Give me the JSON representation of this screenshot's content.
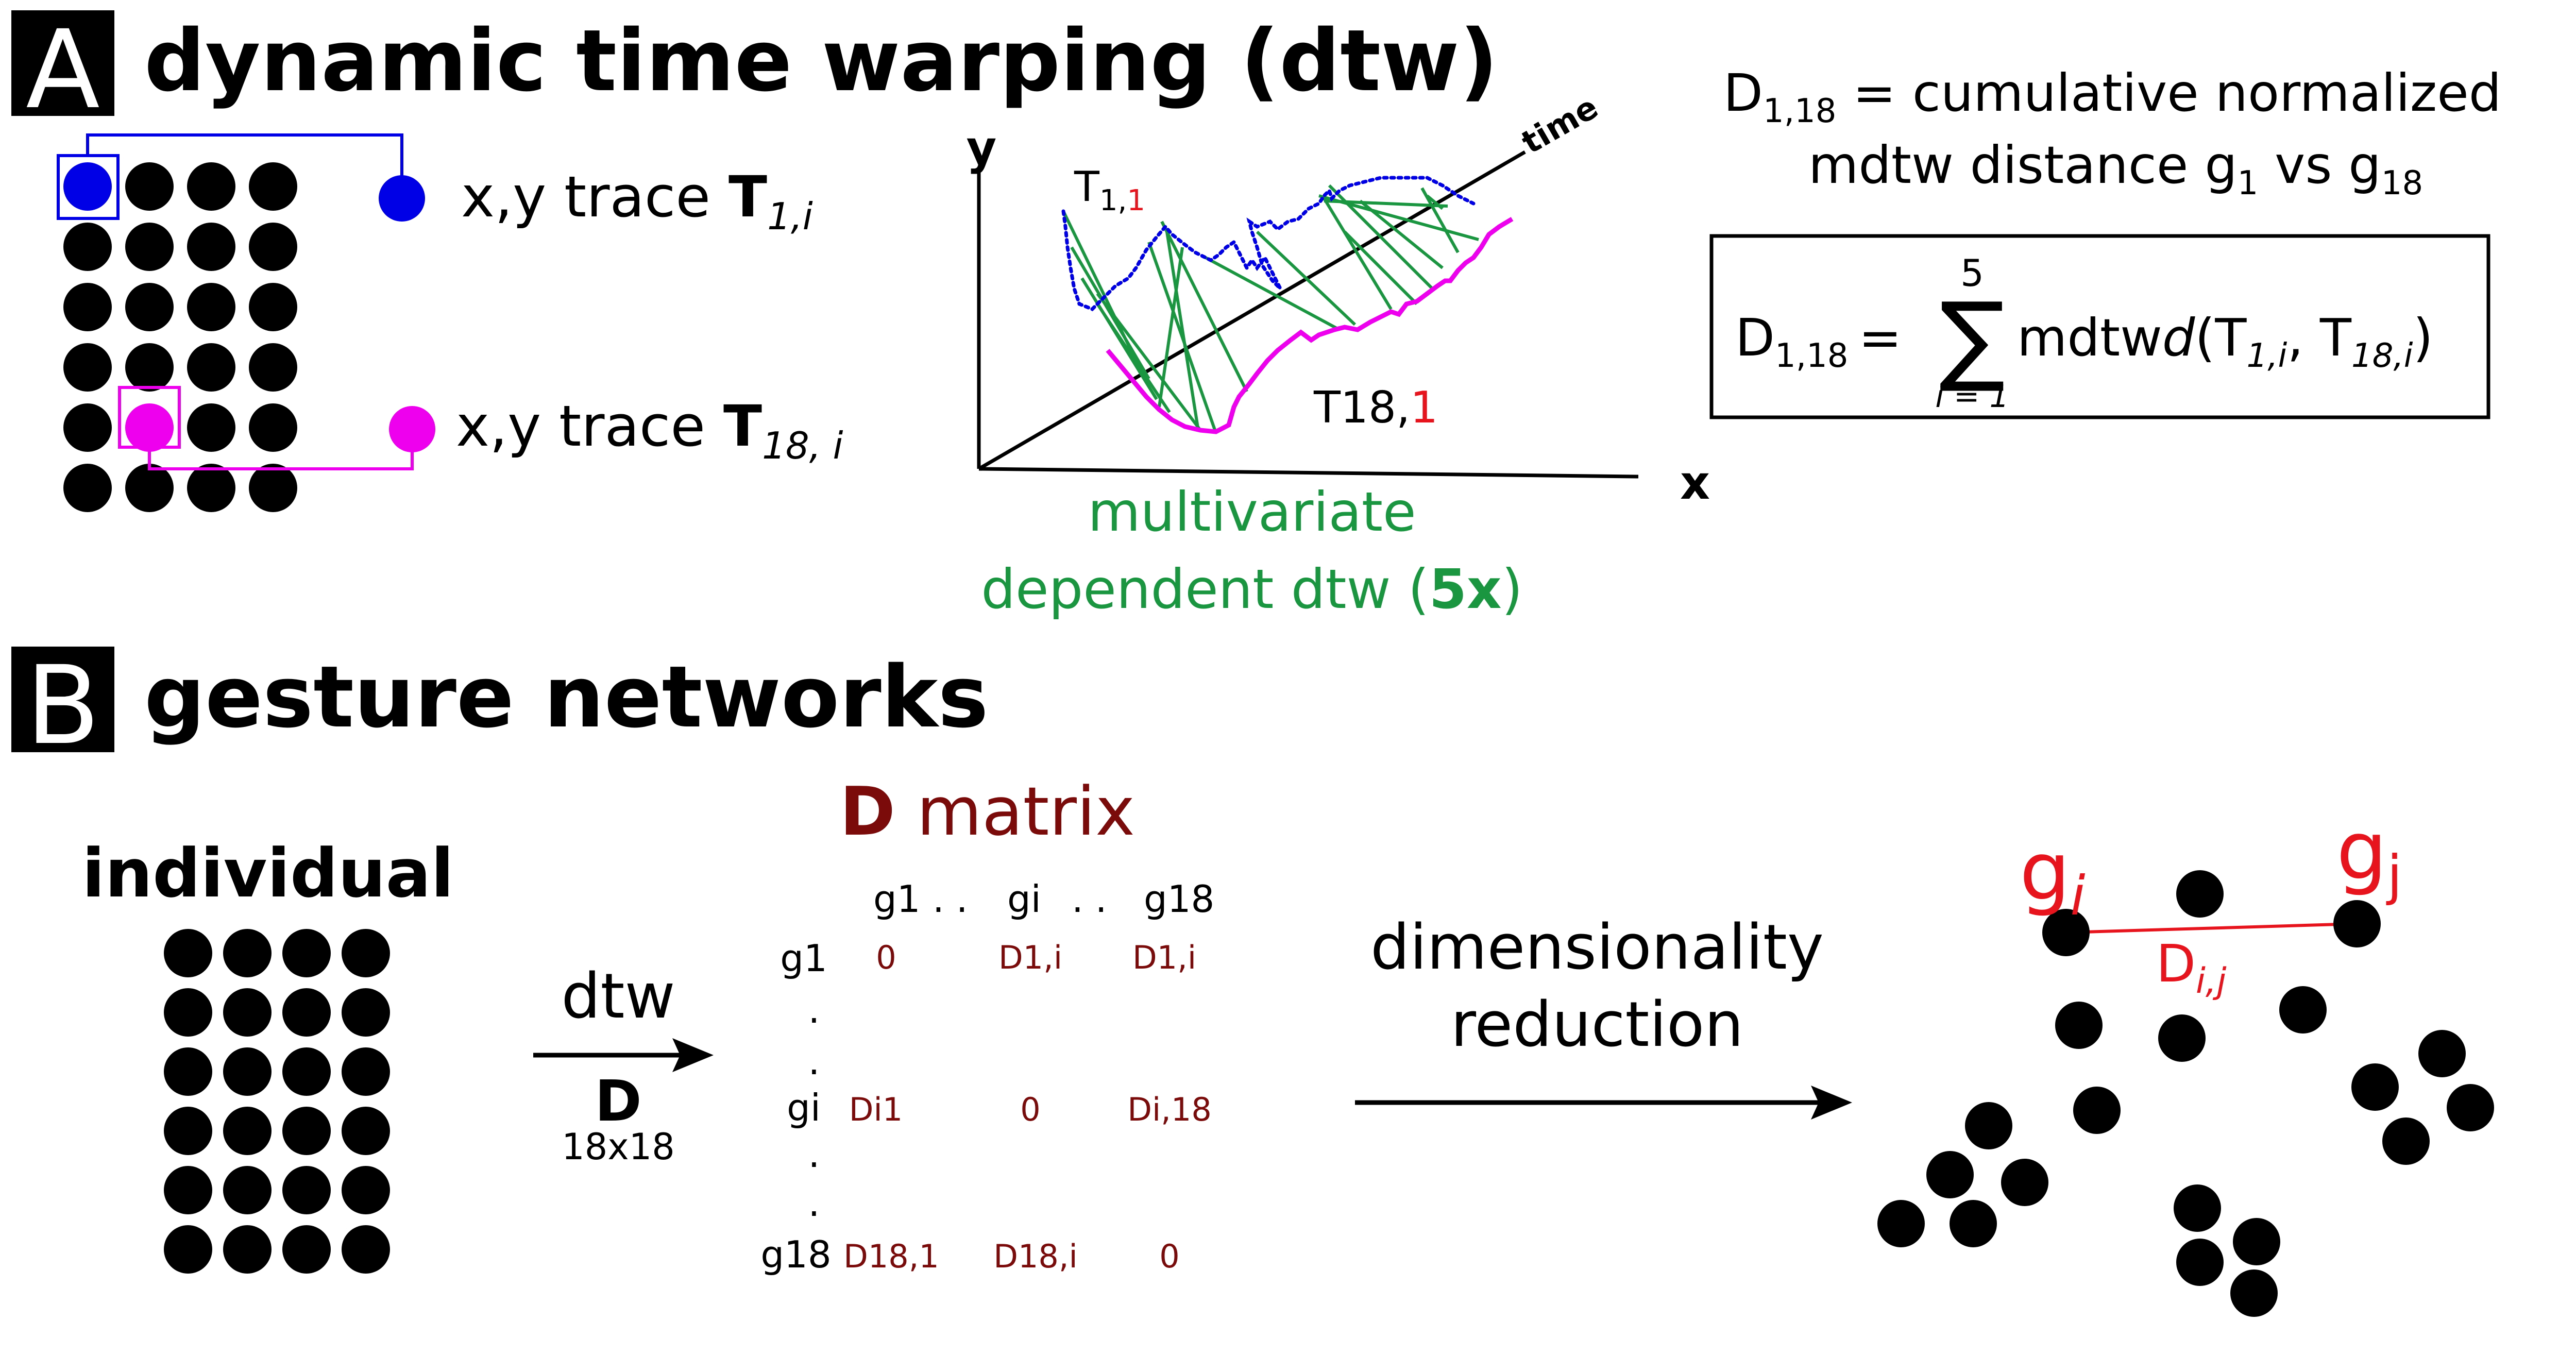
{
  "colors": {
    "blue": "#0000e6",
    "magenta": "#ee00ee",
    "green": "#1a9641",
    "red": "#e8141d",
    "darkred": "#7b0a0a",
    "black": "#000000"
  },
  "panelA": {
    "letter": "A",
    "title": "dynamic time warping (dtw)",
    "trace1": {
      "prefix": "x,y trace ",
      "T": "T",
      "sub": "1,i"
    },
    "trace18": {
      "prefix": "x,y trace ",
      "T": "T",
      "sub": "18, i"
    },
    "plot": {
      "y_label": "y",
      "x_label": "x",
      "time_label": "time",
      "t1_label": "T",
      "t1_sub": "1,",
      "t1_red": "1",
      "t18_label": "T18,",
      "t18_red": "1",
      "caption_line1": "multivariate",
      "caption_line2_pre": "dependent dtw (",
      "caption_bold": "5x",
      "caption_line2_post": ")"
    },
    "definition": {
      "D": "D",
      "sub": "1,18",
      "text_line1": " = cumulative normalized",
      "text_line2_a": "mdtw distance g",
      "sub_g1": "1",
      "text_line2_b": " vs g",
      "sub_g18": "18"
    },
    "formula": {
      "D": "D",
      "sub": "1,18",
      "eq": "=",
      "sum_top": "5",
      "sum_sym": "∑",
      "sum_bot": "i = 1",
      "func": "mdtw",
      "d": "d",
      "args_a": "(T",
      "args_sub1": "1,i",
      "args_b": ", T",
      "args_sub2": "18,i",
      "args_c": ")"
    }
  },
  "panelB": {
    "letter": "B",
    "title": "gesture networks",
    "individual": "individual",
    "dtw": "dtw",
    "D_bold": "D",
    "size": "18x18",
    "matrix": {
      "title_bold": "D",
      "title_rest": " matrix",
      "col_headers": [
        "g1",
        ". .",
        "gi",
        ". .",
        "g18"
      ],
      "row_labels": [
        "g1",
        ".",
        ".",
        "gi",
        ".",
        ".",
        "g18"
      ],
      "cells": {
        "r1": [
          "0",
          "D1,i",
          "D1,i"
        ],
        "ri": [
          "Di1",
          "0",
          "Di,18"
        ],
        "r18": [
          "D18,1",
          "D18,i",
          "0"
        ]
      }
    },
    "dimred_line1": "dimensionality",
    "dimred_line2": "reduction",
    "network": {
      "gi": "g",
      "gi_sub": "i",
      "gj": "g",
      "gj_sub": "j",
      "edge": "D",
      "edge_sub": "i,j"
    }
  }
}
